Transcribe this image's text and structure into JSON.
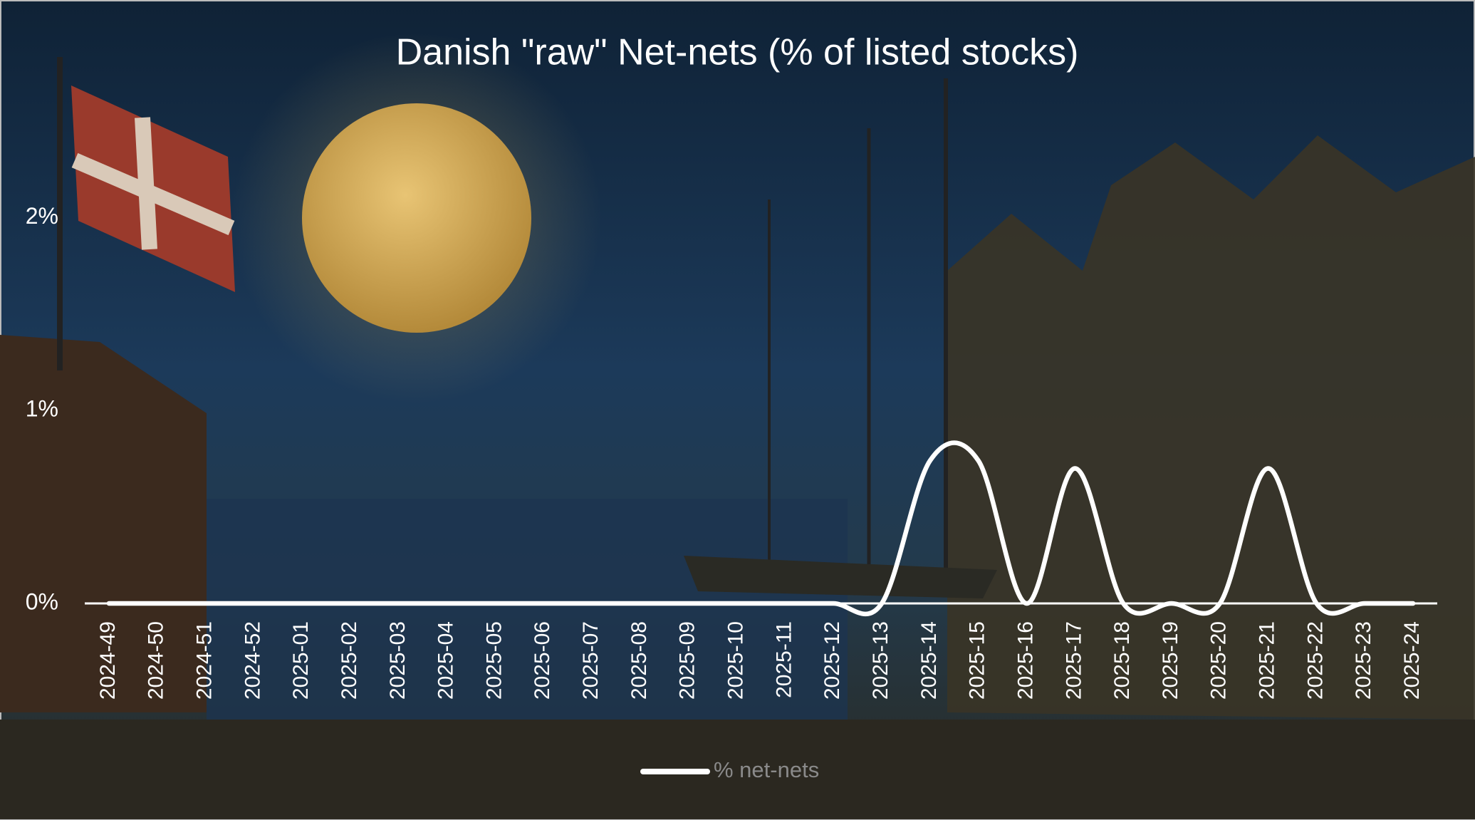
{
  "chart_data": {
    "type": "line",
    "title": "Danish \"raw\" Net-nets (% of listed stocks)",
    "categories": [
      "2024-49",
      "2024-50",
      "2024-51",
      "2024-52",
      "2025-01",
      "2025-02",
      "2025-03",
      "2025-04",
      "2025-05",
      "2025-06",
      "2025-07",
      "2025-08",
      "2025-09",
      "2025-10",
      "2025-11",
      "2025-12",
      "2025-13",
      "2025-14",
      "2025-15",
      "2025-16",
      "2025-17",
      "2025-18",
      "2025-19",
      "2025-20",
      "2025-21",
      "2025-22",
      "2025-23",
      "2025-24"
    ],
    "series": [
      {
        "name": "% net-nets",
        "color": "#ffffff",
        "values": [
          0,
          0,
          0,
          0,
          0,
          0,
          0,
          0,
          0,
          0,
          0,
          0,
          0,
          0,
          0,
          0,
          0,
          0.74,
          0.74,
          0,
          0.7,
          0,
          0,
          0,
          0.7,
          0,
          0,
          0
        ]
      }
    ],
    "ylim": [
      0,
      2.5
    ],
    "yticks": [
      {
        "value": 0,
        "label": "0%"
      },
      {
        "value": 1,
        "label": "1%"
      },
      {
        "value": 2,
        "label": "2%"
      }
    ],
    "smooth": true,
    "legend": "bottom"
  }
}
